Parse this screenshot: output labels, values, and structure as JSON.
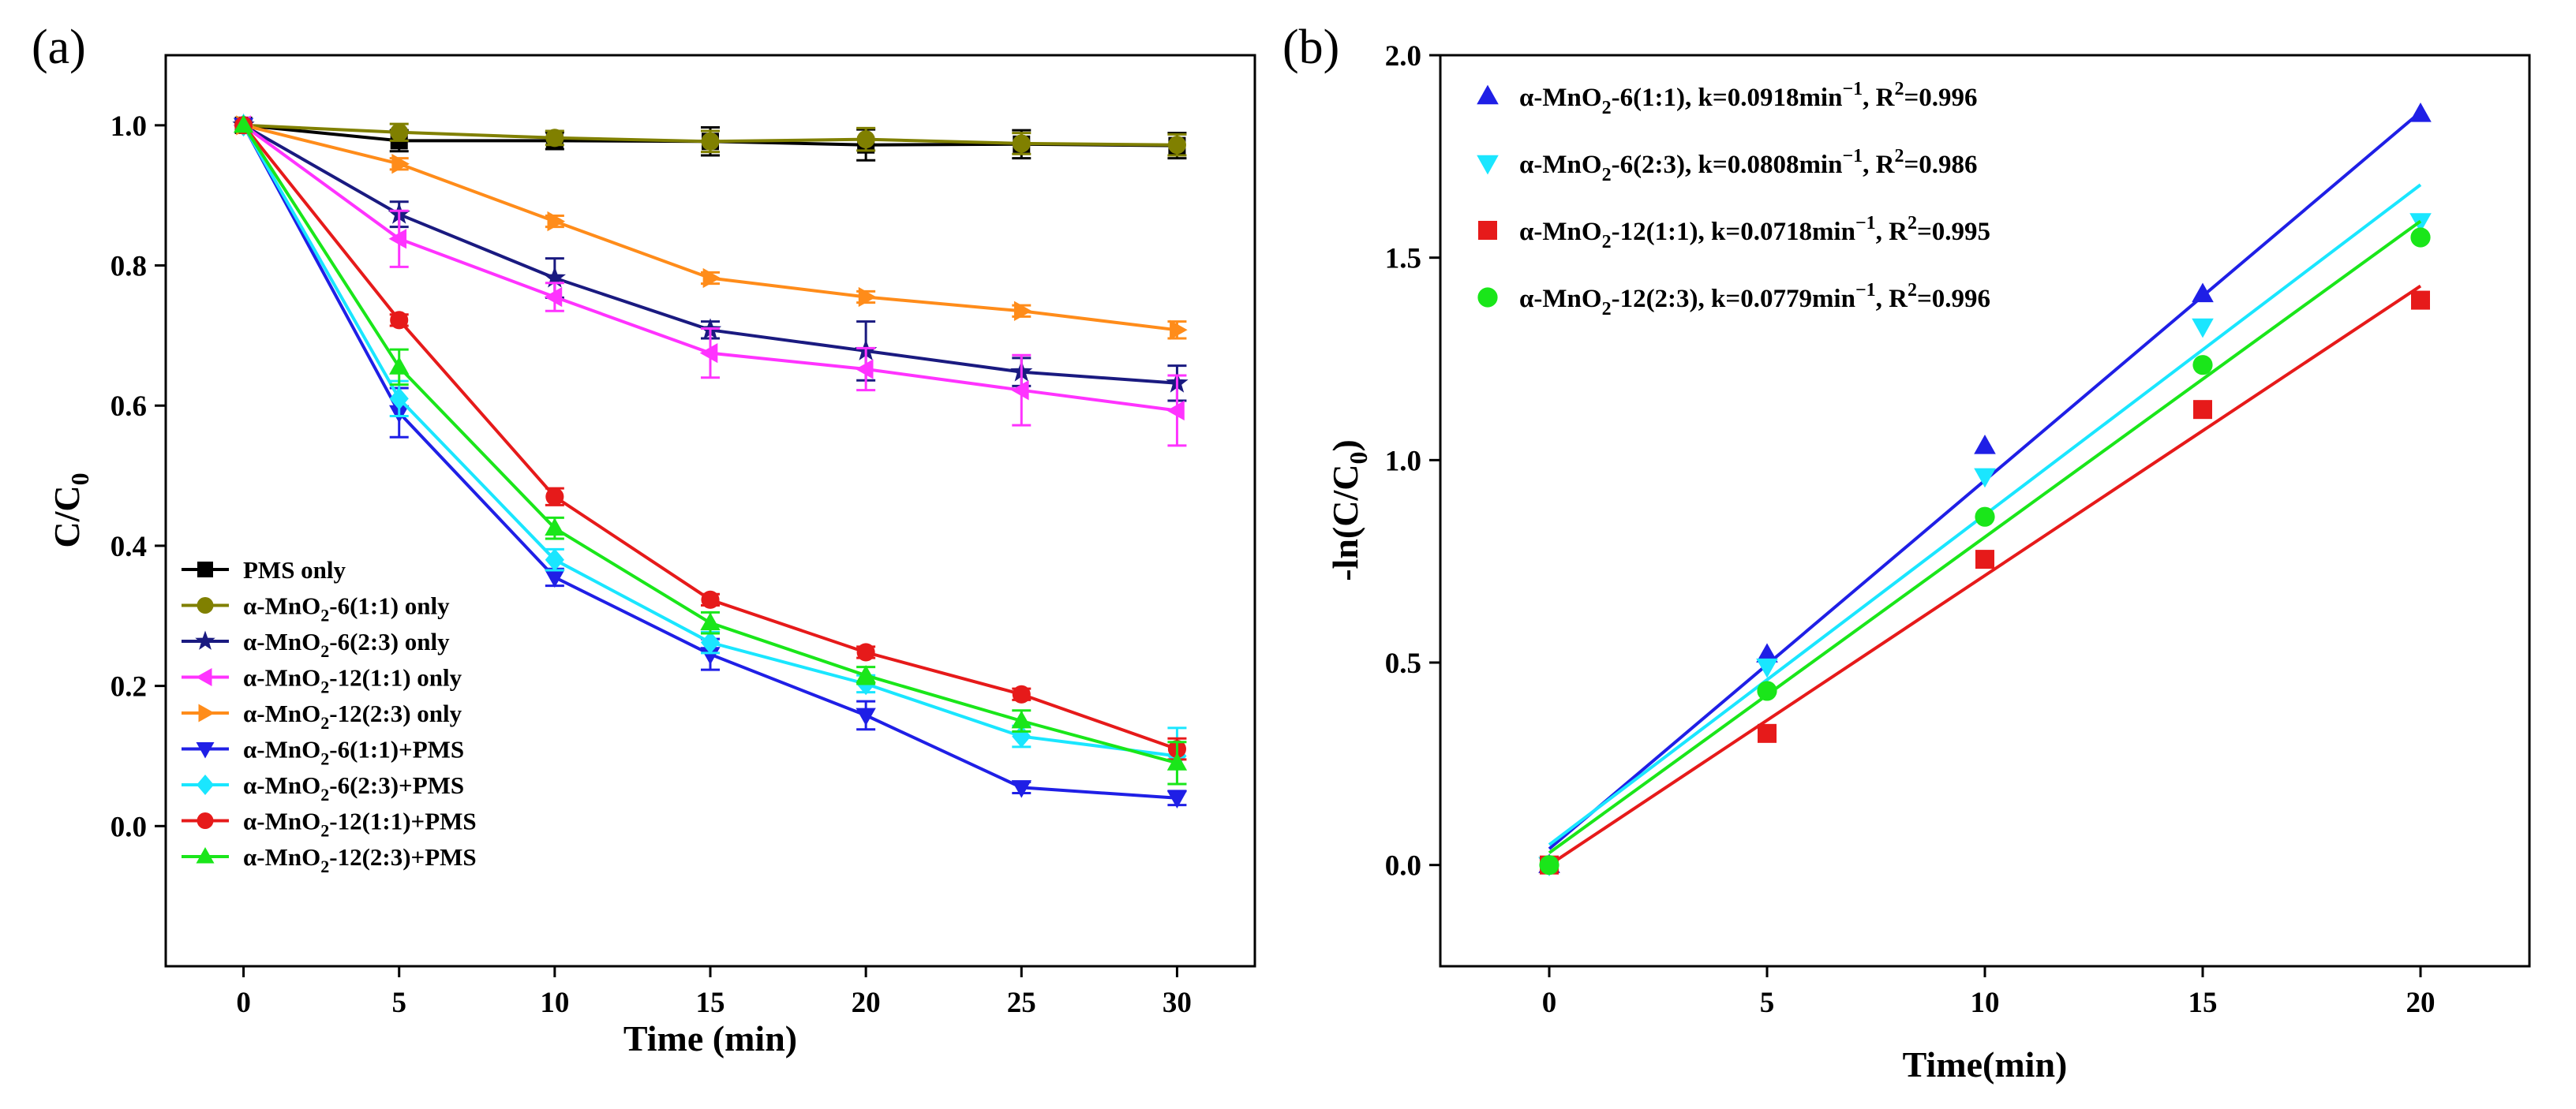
{
  "chart_data": [
    {
      "panel": "(a)",
      "type": "line",
      "xlabel": "Time (min)",
      "ylabel": "C/C",
      "ylabel_sub": "0",
      "xlim": [
        -2.5,
        32.5
      ],
      "ylim": [
        -0.2,
        1.1
      ],
      "xticks": [
        0,
        5,
        10,
        15,
        20,
        25,
        30
      ],
      "yticks": [
        0.0,
        0.2,
        0.4,
        0.6,
        0.8,
        1.0
      ],
      "ytick_labels": [
        "0.0",
        "0.2",
        "0.4",
        "0.6",
        "0.8",
        "1.0"
      ],
      "legend_position": "bottom-left",
      "x": [
        0,
        5,
        10,
        15,
        20,
        25,
        30
      ],
      "series": [
        {
          "pre": "PMS only",
          "sub": "",
          "post": "",
          "color": "#000000",
          "marker": "square",
          "values": [
            1.0,
            0.978,
            0.978,
            0.977,
            0.972,
            0.973,
            0.971
          ],
          "errors": [
            0.0,
            0.015,
            0.012,
            0.02,
            0.022,
            0.02,
            0.018
          ]
        },
        {
          "pre": "α-MnO",
          "sub": "2",
          "post": "-6(1:1) only",
          "color": "#808000",
          "marker": "circle",
          "values": [
            1.0,
            0.99,
            0.982,
            0.977,
            0.98,
            0.974,
            0.972
          ],
          "errors": [
            0.0,
            0.012,
            0.01,
            0.015,
            0.016,
            0.015,
            0.015
          ]
        },
        {
          "pre": "α-MnO",
          "sub": "2",
          "post": "-6(2:3) only",
          "color": "#1a1a80",
          "marker": "star",
          "values": [
            1.0,
            0.873,
            0.782,
            0.708,
            0.678,
            0.648,
            0.632
          ],
          "errors": [
            0.0,
            0.018,
            0.028,
            0.012,
            0.042,
            0.02,
            0.025
          ]
        },
        {
          "pre": "α-MnO",
          "sub": "2",
          "post": "-12(1:1) only",
          "color": "#ff33ff",
          "marker": "triangle-left",
          "values": [
            1.0,
            0.838,
            0.755,
            0.675,
            0.652,
            0.622,
            0.593
          ],
          "errors": [
            0.0,
            0.04,
            0.02,
            0.035,
            0.03,
            0.05,
            0.05
          ]
        },
        {
          "pre": "α-MnO",
          "sub": "2",
          "post": "-12(2:3) only",
          "color": "#ff8c1a",
          "marker": "triangle-right",
          "values": [
            1.0,
            0.945,
            0.863,
            0.782,
            0.755,
            0.735,
            0.708
          ],
          "errors": [
            0.0,
            0.008,
            0.008,
            0.008,
            0.008,
            0.008,
            0.012
          ]
        },
        {
          "pre": "α-MnO",
          "sub": "2",
          "post": "-6(1:1)+PMS",
          "color": "#1f1fe6",
          "marker": "triangle-down",
          "values": [
            1.0,
            0.59,
            0.355,
            0.245,
            0.158,
            0.055,
            0.04
          ],
          "errors": [
            0.0,
            0.035,
            0.012,
            0.022,
            0.02,
            0.008,
            0.01
          ]
        },
        {
          "pre": "α-MnO",
          "sub": "2",
          "post": "-6(2:3)+PMS",
          "color": "#1ae6ff",
          "marker": "diamond",
          "values": [
            1.0,
            0.61,
            0.38,
            0.262,
            0.203,
            0.128,
            0.1
          ],
          "errors": [
            0.0,
            0.025,
            0.015,
            0.015,
            0.012,
            0.015,
            0.04
          ]
        },
        {
          "pre": "α-MnO",
          "sub": "2",
          "post": "-12(1:1)+PMS",
          "color": "#e61a1a",
          "marker": "circle",
          "values": [
            1.0,
            0.722,
            0.47,
            0.323,
            0.248,
            0.188,
            0.11
          ],
          "errors": [
            0.0,
            0.008,
            0.012,
            0.008,
            0.008,
            0.008,
            0.015
          ]
        },
        {
          "pre": "α-MnO",
          "sub": "2",
          "post": "-12(2:3)+PMS",
          "color": "#1ae61a",
          "marker": "triangle-up",
          "values": [
            1.0,
            0.655,
            0.425,
            0.29,
            0.215,
            0.15,
            0.09
          ],
          "errors": [
            0.0,
            0.025,
            0.015,
            0.015,
            0.012,
            0.015,
            0.03
          ]
        }
      ]
    },
    {
      "panel": "(b)",
      "type": "scatter",
      "xlabel": "Time(min)",
      "ylabel": "-ln(C/C",
      "ylabel_sub": "0",
      "ylabel_post": ")",
      "xlim": [
        -2.5,
        22.5
      ],
      "ylim": [
        -0.25,
        2.0
      ],
      "xticks": [
        0,
        5,
        10,
        15,
        20
      ],
      "yticks": [
        0.0,
        0.5,
        1.0,
        1.5,
        2.0
      ],
      "ytick_labels": [
        "0.0",
        "0.5",
        "1.0",
        "1.5",
        "2.0"
      ],
      "legend_position": "top-left",
      "x": [
        0,
        5,
        10,
        15,
        20
      ],
      "series": [
        {
          "pre": "α-MnO",
          "sub": "2",
          "mid": "-6(1:1), k=0.0918min",
          "exp": "−1",
          "post": ",  R",
          "exp2": "2",
          "post2": "=0.996",
          "color": "#1f1fe6",
          "marker": "triangle-up",
          "values": [
            0.0,
            0.52,
            1.035,
            1.41,
            1.855
          ],
          "fit": [
            0.04,
            1.86
          ]
        },
        {
          "pre": "α-MnO",
          "sub": "2",
          "mid": "-6(2:3), k=0.0808min",
          "exp": "−1",
          "post": ",  R",
          "exp2": "2",
          "post2": "=0.986",
          "color": "#1ae6ff",
          "marker": "triangle-down",
          "values": [
            0.0,
            0.49,
            0.96,
            1.33,
            1.59
          ],
          "fit": [
            0.05,
            1.68
          ]
        },
        {
          "pre": "α-MnO",
          "sub": "2",
          "mid": "-12(1:1), k=0.0718min",
          "exp": "−1",
          "post": ",  R",
          "exp2": "2",
          "post2": "=0.995",
          "color": "#e61a1a",
          "marker": "square",
          "values": [
            0.0,
            0.325,
            0.755,
            1.125,
            1.395
          ],
          "fit": [
            0.0,
            1.43
          ]
        },
        {
          "pre": "α-MnO",
          "sub": "2",
          "mid": "-12(2:3), k=0.0779min",
          "exp": "−1",
          "post": ",  R",
          "exp2": "2",
          "post2": "=0.996",
          "color": "#1ae61a",
          "marker": "circle",
          "values": [
            0.0,
            0.43,
            0.86,
            1.235,
            1.55
          ],
          "fit": [
            0.03,
            1.59
          ]
        }
      ]
    }
  ]
}
